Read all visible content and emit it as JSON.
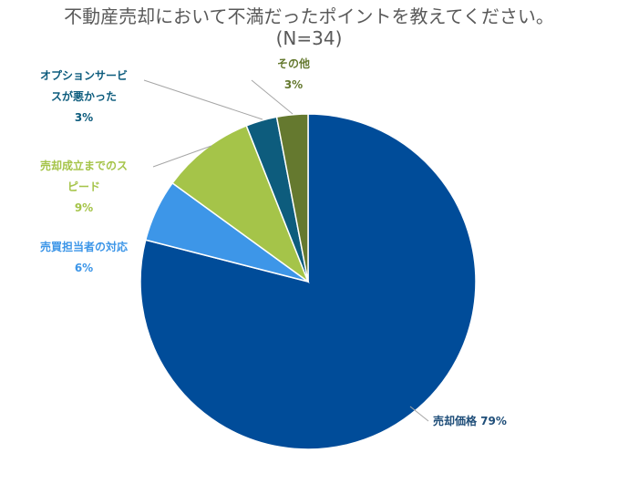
{
  "title_line1": "不動産売却において不満だったポイントを教えてください。",
  "title_line2": "(N=34)",
  "chart_data": {
    "type": "pie",
    "title": "不動産売却において不満だったポイントを教えてください。 (N=34)",
    "start_angle_deg": 0,
    "direction": "clockwise",
    "slices": [
      {
        "name": "売却価格",
        "value": 79,
        "label_lines": [
          "売却価格 79%"
        ],
        "color": "#004C99",
        "label_color": "#1F4E79"
      },
      {
        "name": "売買担当者の対応",
        "value": 6,
        "label_lines": [
          "売買担当者の対応",
          "6%"
        ],
        "color": "#3D96E8",
        "label_color": "#3D96E8"
      },
      {
        "name": "売却成立までのスピード",
        "value": 9,
        "label_lines": [
          "売却成立までのス",
          "ピード",
          "9%"
        ],
        "color": "#A5C449",
        "label_color": "#A5C449"
      },
      {
        "name": "オプションサービスが悪かった",
        "value": 3,
        "label_lines": [
          "オプションサービ",
          "スが悪かった",
          "3%"
        ],
        "color": "#0D5C7D",
        "label_color": "#0D5C7D"
      },
      {
        "name": "その他",
        "value": 3,
        "label_lines": [
          "その他",
          "3%"
        ],
        "color": "#65792F",
        "label_color": "#65792F"
      }
    ]
  }
}
